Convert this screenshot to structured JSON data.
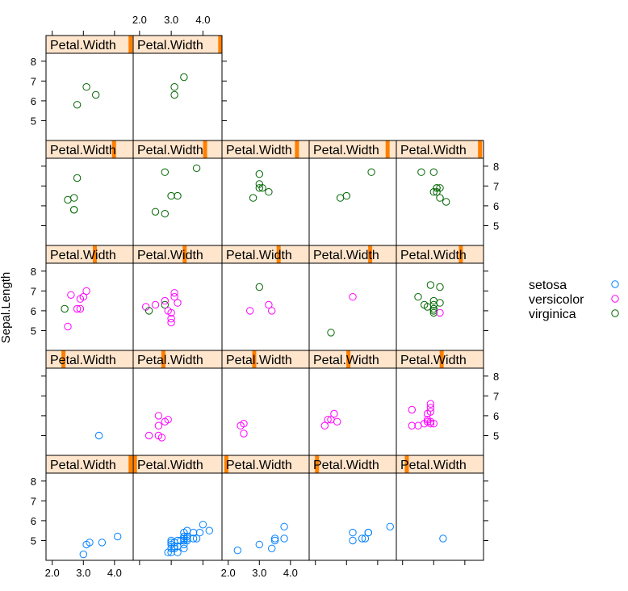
{
  "chart_data": {
    "type": "scatter",
    "layout": "lattice-trellis-5x5",
    "ylabel": "Sepal.Length",
    "strip_label": "Petal.Width",
    "xlim": [
      1.8,
      4.6
    ],
    "ylim": [
      4.0,
      8.4
    ],
    "x_ticks": [
      2.0,
      3.0,
      4.0
    ],
    "x_tick_labels": [
      "2.0",
      "3.0",
      "4.0"
    ],
    "y_ticks": [
      5,
      6,
      7,
      8
    ],
    "y_tick_labels": [
      "5",
      "6",
      "7",
      "8"
    ],
    "legend": {
      "placement": "right",
      "entries": [
        "setosa",
        "versicolor",
        "virginica"
      ]
    },
    "colors": {
      "setosa": "#0080ff",
      "versicolor": "#ff00ff",
      "virginica": "#006400",
      "strip_bg": "#ffe5cc",
      "strip_bar": "#ff7f00"
    },
    "panels": [
      {
        "row": 1,
        "col": 1,
        "strip_level": 0.97,
        "points": [
          {
            "x": 3.0,
            "y": 4.3,
            "s": "setosa"
          },
          {
            "x": 3.1,
            "y": 4.8,
            "s": "setosa"
          },
          {
            "x": 3.2,
            "y": 4.9,
            "s": "setosa"
          },
          {
            "x": 3.6,
            "y": 4.9,
            "s": "setosa"
          },
          {
            "x": 4.1,
            "y": 5.2,
            "s": "setosa"
          }
        ]
      },
      {
        "row": 1,
        "col": 2,
        "strip_level": 0.02,
        "points": [
          {
            "x": 2.9,
            "y": 4.4,
            "s": "setosa"
          },
          {
            "x": 3.0,
            "y": 4.4,
            "s": "setosa"
          },
          {
            "x": 3.2,
            "y": 4.4,
            "s": "setosa"
          },
          {
            "x": 3.0,
            "y": 4.6,
            "s": "setosa"
          },
          {
            "x": 3.1,
            "y": 4.6,
            "s": "setosa"
          },
          {
            "x": 3.4,
            "y": 4.6,
            "s": "setosa"
          },
          {
            "x": 3.1,
            "y": 4.7,
            "s": "setosa"
          },
          {
            "x": 3.2,
            "y": 4.7,
            "s": "setosa"
          },
          {
            "x": 3.0,
            "y": 4.8,
            "s": "setosa"
          },
          {
            "x": 3.4,
            "y": 4.8,
            "s": "setosa"
          },
          {
            "x": 3.1,
            "y": 4.9,
            "s": "setosa"
          },
          {
            "x": 3.0,
            "y": 4.9,
            "s": "setosa"
          },
          {
            "x": 3.0,
            "y": 5.0,
            "s": "setosa"
          },
          {
            "x": 3.2,
            "y": 5.0,
            "s": "setosa"
          },
          {
            "x": 3.3,
            "y": 5.0,
            "s": "setosa"
          },
          {
            "x": 3.4,
            "y": 5.0,
            "s": "setosa"
          },
          {
            "x": 3.5,
            "y": 5.0,
            "s": "setosa"
          },
          {
            "x": 3.5,
            "y": 5.1,
            "s": "setosa"
          },
          {
            "x": 3.4,
            "y": 5.1,
            "s": "setosa"
          },
          {
            "x": 3.7,
            "y": 5.1,
            "s": "setosa"
          },
          {
            "x": 3.8,
            "y": 5.1,
            "s": "setosa"
          },
          {
            "x": 3.4,
            "y": 5.2,
            "s": "setosa"
          },
          {
            "x": 3.5,
            "y": 5.2,
            "s": "setosa"
          },
          {
            "x": 3.4,
            "y": 5.4,
            "s": "setosa"
          },
          {
            "x": 3.7,
            "y": 5.4,
            "s": "setosa"
          },
          {
            "x": 3.9,
            "y": 5.4,
            "s": "setosa"
          },
          {
            "x": 3.5,
            "y": 5.5,
            "s": "setosa"
          },
          {
            "x": 4.2,
            "y": 5.5,
            "s": "setosa"
          },
          {
            "x": 4.0,
            "y": 5.8,
            "s": "setosa"
          }
        ]
      },
      {
        "row": 1,
        "col": 3,
        "strip_level": 0.05,
        "points": [
          {
            "x": 2.3,
            "y": 4.5,
            "s": "setosa"
          },
          {
            "x": 3.0,
            "y": 4.8,
            "s": "setosa"
          },
          {
            "x": 3.4,
            "y": 4.6,
            "s": "setosa"
          },
          {
            "x": 3.5,
            "y": 5.0,
            "s": "setosa"
          },
          {
            "x": 3.5,
            "y": 5.1,
            "s": "setosa"
          },
          {
            "x": 3.8,
            "y": 5.1,
            "s": "setosa"
          },
          {
            "x": 3.8,
            "y": 5.7,
            "s": "setosa"
          }
        ]
      },
      {
        "row": 1,
        "col": 4,
        "strip_level": 0.09,
        "points": [
          {
            "x": 3.2,
            "y": 5.0,
            "s": "setosa"
          },
          {
            "x": 3.5,
            "y": 5.1,
            "s": "setosa"
          },
          {
            "x": 3.6,
            "y": 5.1,
            "s": "setosa"
          },
          {
            "x": 3.7,
            "y": 5.4,
            "s": "setosa"
          },
          {
            "x": 3.7,
            "y": 5.4,
            "s": "setosa"
          },
          {
            "x": 3.2,
            "y": 5.4,
            "s": "setosa"
          },
          {
            "x": 4.4,
            "y": 5.7,
            "s": "setosa"
          }
        ]
      },
      {
        "row": 1,
        "col": 5,
        "strip_level": 0.12,
        "points": [
          {
            "x": 3.3,
            "y": 5.1,
            "s": "setosa"
          }
        ]
      },
      {
        "row": 2,
        "col": 1,
        "strip_level": 0.2,
        "points": [
          {
            "x": 3.5,
            "y": 5.0,
            "s": "setosa"
          }
        ]
      },
      {
        "row": 2,
        "col": 2,
        "strip_level": 0.34,
        "points": [
          {
            "x": 2.3,
            "y": 5.0,
            "s": "versicolor"
          },
          {
            "x": 2.6,
            "y": 5.0,
            "s": "versicolor"
          },
          {
            "x": 2.7,
            "y": 4.9,
            "s": "versicolor"
          },
          {
            "x": 2.6,
            "y": 5.5,
            "s": "versicolor"
          },
          {
            "x": 2.6,
            "y": 6.0,
            "s": "versicolor"
          },
          {
            "x": 2.8,
            "y": 5.7,
            "s": "versicolor"
          },
          {
            "x": 2.9,
            "y": 5.8,
            "s": "versicolor"
          }
        ]
      },
      {
        "row": 2,
        "col": 3,
        "strip_level": 0.37,
        "points": [
          {
            "x": 2.4,
            "y": 5.5,
            "s": "versicolor"
          },
          {
            "x": 2.5,
            "y": 5.6,
            "s": "versicolor"
          },
          {
            "x": 2.5,
            "y": 5.1,
            "s": "versicolor"
          }
        ]
      },
      {
        "row": 2,
        "col": 4,
        "strip_level": 0.45,
        "points": [
          {
            "x": 2.3,
            "y": 5.5,
            "s": "versicolor"
          },
          {
            "x": 2.4,
            "y": 5.8,
            "s": "versicolor"
          },
          {
            "x": 2.5,
            "y": 5.8,
            "s": "versicolor"
          },
          {
            "x": 2.6,
            "y": 6.1,
            "s": "versicolor"
          },
          {
            "x": 2.7,
            "y": 5.7,
            "s": "versicolor"
          }
        ]
      },
      {
        "row": 2,
        "col": 5,
        "strip_level": 0.52,
        "points": [
          {
            "x": 2.3,
            "y": 6.3,
            "s": "versicolor"
          },
          {
            "x": 2.3,
            "y": 5.5,
            "s": "versicolor"
          },
          {
            "x": 2.5,
            "y": 5.5,
            "s": "versicolor"
          },
          {
            "x": 2.7,
            "y": 5.6,
            "s": "versicolor"
          },
          {
            "x": 2.8,
            "y": 5.7,
            "s": "versicolor"
          },
          {
            "x": 2.8,
            "y": 5.8,
            "s": "versicolor"
          },
          {
            "x": 2.8,
            "y": 6.1,
            "s": "versicolor"
          },
          {
            "x": 2.9,
            "y": 5.6,
            "s": "versicolor"
          },
          {
            "x": 2.9,
            "y": 5.7,
            "s": "versicolor"
          },
          {
            "x": 2.9,
            "y": 6.2,
            "s": "versicolor"
          },
          {
            "x": 2.9,
            "y": 6.4,
            "s": "versicolor"
          },
          {
            "x": 2.9,
            "y": 6.6,
            "s": "versicolor"
          },
          {
            "x": 3.0,
            "y": 5.6,
            "s": "versicolor"
          }
        ]
      },
      {
        "row": 3,
        "col": 1,
        "strip_level": 0.56,
        "points": [
          {
            "x": 2.5,
            "y": 5.2,
            "s": "versicolor"
          },
          {
            "x": 2.4,
            "y": 6.1,
            "s": "virginica"
          },
          {
            "x": 2.8,
            "y": 6.1,
            "s": "versicolor"
          },
          {
            "x": 2.9,
            "y": 6.1,
            "s": "versicolor"
          },
          {
            "x": 2.9,
            "y": 6.6,
            "s": "versicolor"
          },
          {
            "x": 2.6,
            "y": 6.8,
            "s": "versicolor"
          },
          {
            "x": 3.0,
            "y": 6.7,
            "s": "versicolor"
          },
          {
            "x": 3.1,
            "y": 7.0,
            "s": "versicolor"
          }
        ]
      },
      {
        "row": 3,
        "col": 2,
        "strip_level": 0.58,
        "points": [
          {
            "x": 2.2,
            "y": 6.2,
            "s": "versicolor"
          },
          {
            "x": 2.5,
            "y": 6.3,
            "s": "versicolor"
          },
          {
            "x": 2.3,
            "y": 6.0,
            "s": "virginica"
          },
          {
            "x": 2.8,
            "y": 6.3,
            "s": "virginica"
          },
          {
            "x": 2.8,
            "y": 6.5,
            "s": "versicolor"
          },
          {
            "x": 2.9,
            "y": 6.0,
            "s": "versicolor"
          },
          {
            "x": 3.0,
            "y": 5.9,
            "s": "versicolor"
          },
          {
            "x": 3.0,
            "y": 5.6,
            "s": "versicolor"
          },
          {
            "x": 3.0,
            "y": 5.4,
            "s": "versicolor"
          },
          {
            "x": 3.1,
            "y": 6.7,
            "s": "versicolor"
          },
          {
            "x": 3.1,
            "y": 6.9,
            "s": "versicolor"
          },
          {
            "x": 3.2,
            "y": 6.4,
            "s": "versicolor"
          }
        ]
      },
      {
        "row": 3,
        "col": 3,
        "strip_level": 0.65,
        "points": [
          {
            "x": 2.7,
            "y": 6.0,
            "s": "versicolor"
          },
          {
            "x": 3.0,
            "y": 7.2,
            "s": "virginica"
          },
          {
            "x": 3.3,
            "y": 6.3,
            "s": "versicolor"
          },
          {
            "x": 3.4,
            "y": 6.0,
            "s": "versicolor"
          }
        ]
      },
      {
        "row": 3,
        "col": 4,
        "strip_level": 0.7,
        "points": [
          {
            "x": 2.5,
            "y": 4.9,
            "s": "virginica"
          },
          {
            "x": 3.2,
            "y": 6.7,
            "s": "versicolor"
          }
        ]
      },
      {
        "row": 3,
        "col": 5,
        "strip_level": 0.74,
        "points": [
          {
            "x": 2.5,
            "y": 6.7,
            "s": "virginica"
          },
          {
            "x": 2.7,
            "y": 6.3,
            "s": "virginica"
          },
          {
            "x": 2.8,
            "y": 6.2,
            "s": "virginica"
          },
          {
            "x": 2.9,
            "y": 7.3,
            "s": "virginica"
          },
          {
            "x": 3.0,
            "y": 5.9,
            "s": "virginica"
          },
          {
            "x": 3.0,
            "y": 6.0,
            "s": "virginica"
          },
          {
            "x": 3.0,
            "y": 6.1,
            "s": "virginica"
          },
          {
            "x": 3.0,
            "y": 6.3,
            "s": "virginica"
          },
          {
            "x": 3.0,
            "y": 6.5,
            "s": "virginica"
          },
          {
            "x": 3.2,
            "y": 6.4,
            "s": "virginica"
          },
          {
            "x": 3.2,
            "y": 7.2,
            "s": "virginica"
          },
          {
            "x": 3.2,
            "y": 5.9,
            "s": "versicolor"
          }
        ]
      },
      {
        "row": 4,
        "col": 1,
        "strip_level": 0.78,
        "points": [
          {
            "x": 2.5,
            "y": 6.3,
            "s": "virginica"
          },
          {
            "x": 2.7,
            "y": 5.8,
            "s": "virginica"
          },
          {
            "x": 2.7,
            "y": 5.8,
            "s": "virginica"
          },
          {
            "x": 2.7,
            "y": 6.4,
            "s": "virginica"
          },
          {
            "x": 2.8,
            "y": 7.4,
            "s": "virginica"
          }
        ]
      },
      {
        "row": 4,
        "col": 2,
        "strip_level": 0.81,
        "points": [
          {
            "x": 2.5,
            "y": 5.7,
            "s": "virginica"
          },
          {
            "x": 2.8,
            "y": 5.6,
            "s": "virginica"
          },
          {
            "x": 3.0,
            "y": 6.5,
            "s": "virginica"
          },
          {
            "x": 3.2,
            "y": 6.5,
            "s": "virginica"
          },
          {
            "x": 2.8,
            "y": 7.7,
            "s": "virginica"
          },
          {
            "x": 3.8,
            "y": 7.9,
            "s": "virginica"
          }
        ]
      },
      {
        "row": 4,
        "col": 3,
        "strip_level": 0.86,
        "points": [
          {
            "x": 2.8,
            "y": 6.4,
            "s": "virginica"
          },
          {
            "x": 3.0,
            "y": 6.9,
            "s": "virginica"
          },
          {
            "x": 3.0,
            "y": 7.1,
            "s": "virginica"
          },
          {
            "x": 3.0,
            "y": 7.6,
            "s": "virginica"
          },
          {
            "x": 3.1,
            "y": 6.9,
            "s": "virginica"
          },
          {
            "x": 3.3,
            "y": 6.7,
            "s": "virginica"
          }
        ]
      },
      {
        "row": 4,
        "col": 4,
        "strip_level": 0.9,
        "points": [
          {
            "x": 2.8,
            "y": 6.4,
            "s": "virginica"
          },
          {
            "x": 3.0,
            "y": 6.5,
            "s": "virginica"
          },
          {
            "x": 3.8,
            "y": 7.7,
            "s": "virginica"
          }
        ]
      },
      {
        "row": 4,
        "col": 5,
        "strip_level": 0.96,
        "points": [
          {
            "x": 2.6,
            "y": 7.7,
            "s": "virginica"
          },
          {
            "x": 3.0,
            "y": 7.7,
            "s": "virginica"
          },
          {
            "x": 3.0,
            "y": 6.7,
            "s": "virginica"
          },
          {
            "x": 3.1,
            "y": 6.9,
            "s": "virginica"
          },
          {
            "x": 3.1,
            "y": 6.7,
            "s": "virginica"
          },
          {
            "x": 3.2,
            "y": 6.9,
            "s": "virginica"
          },
          {
            "x": 3.2,
            "y": 6.4,
            "s": "virginica"
          },
          {
            "x": 3.4,
            "y": 6.2,
            "s": "virginica"
          },
          {
            "x": 3.1,
            "y": 6.9,
            "s": "virginica"
          }
        ]
      },
      {
        "row": 5,
        "col": 1,
        "strip_level": 0.97,
        "points": [
          {
            "x": 2.8,
            "y": 5.8,
            "s": "virginica"
          },
          {
            "x": 3.1,
            "y": 6.7,
            "s": "virginica"
          },
          {
            "x": 3.4,
            "y": 6.3,
            "s": "virginica"
          }
        ]
      },
      {
        "row": 5,
        "col": 2,
        "strip_level": 0.98,
        "points": [
          {
            "x": 3.1,
            "y": 6.3,
            "s": "virginica"
          },
          {
            "x": 3.1,
            "y": 6.7,
            "s": "virginica"
          },
          {
            "x": 3.4,
            "y": 7.2,
            "s": "virginica"
          }
        ]
      }
    ]
  }
}
